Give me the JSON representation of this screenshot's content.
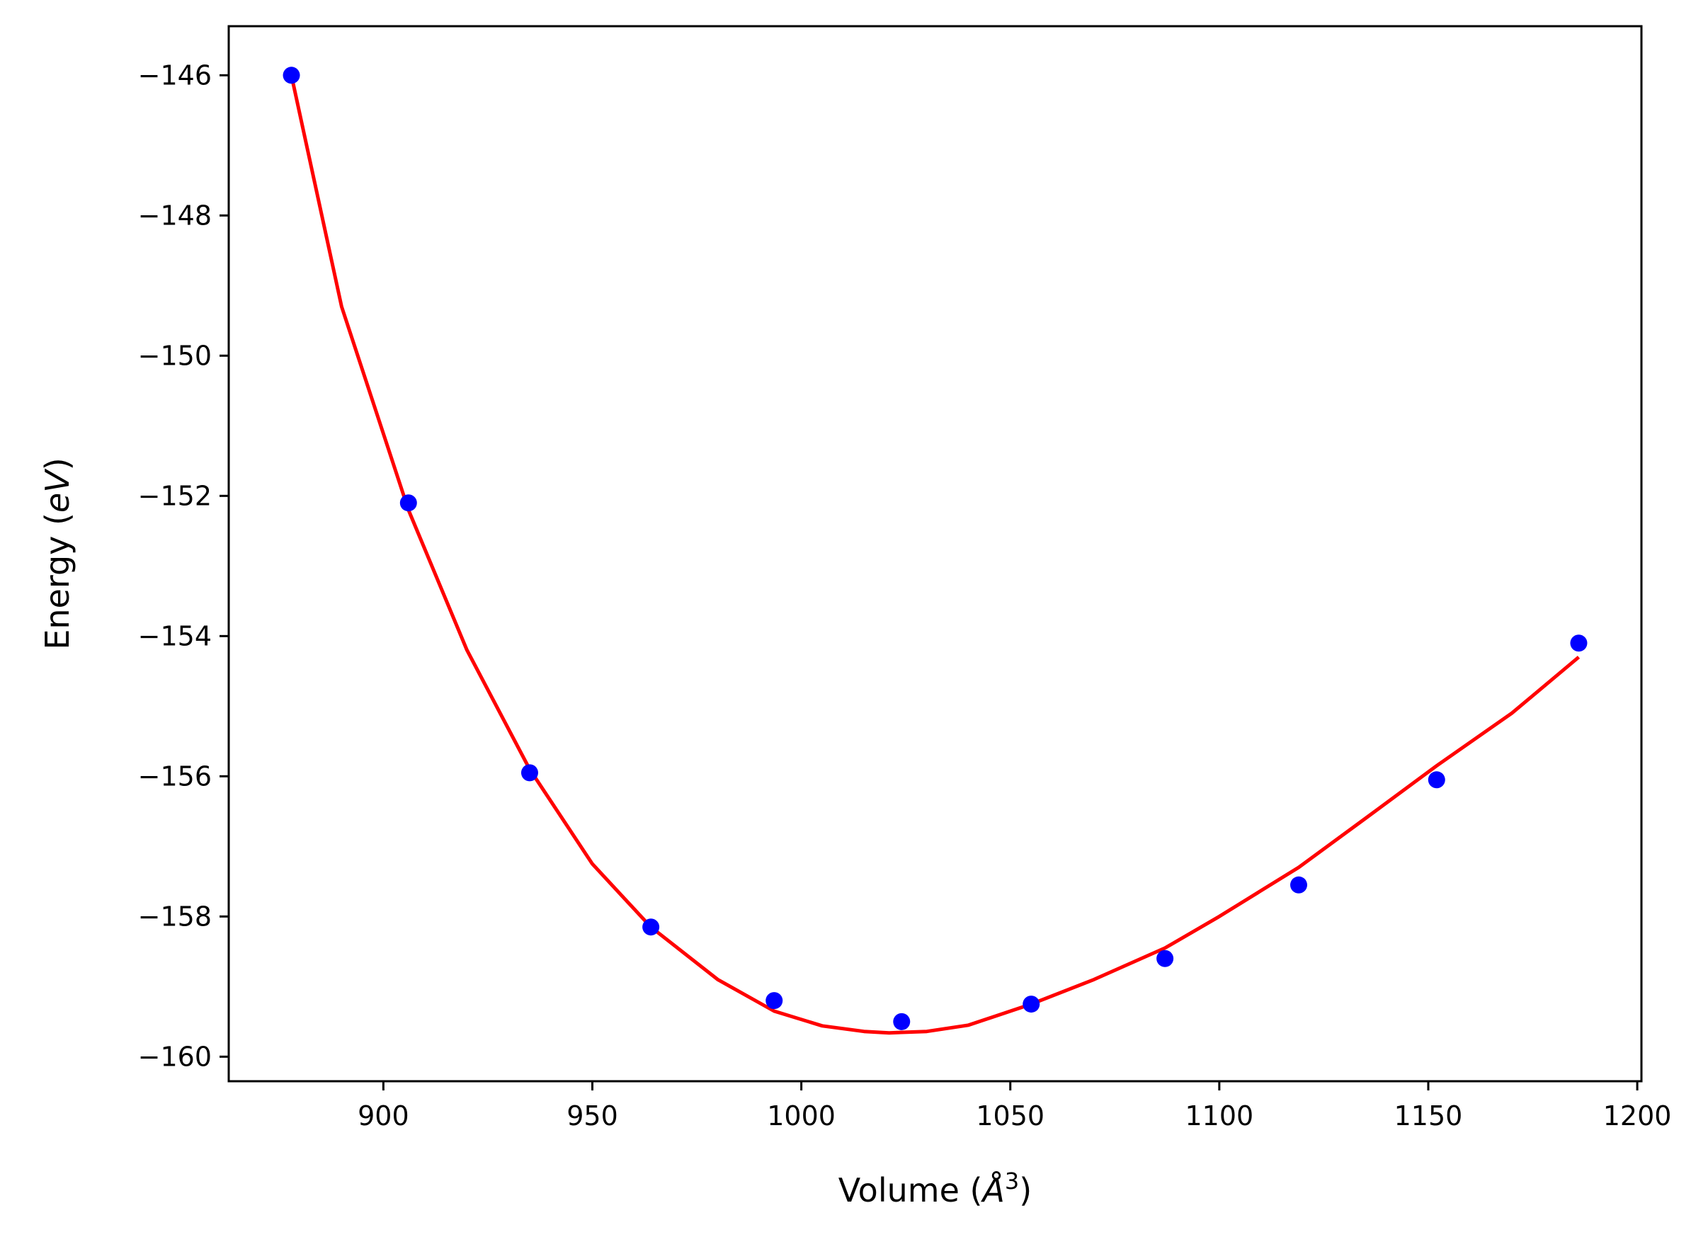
{
  "chart_data": {
    "type": "scatter",
    "xlabel": "Volume (Å³)",
    "xlabel_parts": {
      "text": "Volume (",
      "symbol": "Å",
      "superscript": "3",
      "close": ")"
    },
    "ylabel": "Energy (eV)",
    "ylabel_parts": {
      "text": "Energy (",
      "unit": "eV",
      "close": ")"
    },
    "xlim": [
      863,
      1201
    ],
    "ylim": [
      -160.35,
      -145.3
    ],
    "x_ticks": [
      900,
      950,
      1000,
      1050,
      1100,
      1150,
      1200
    ],
    "y_ticks": [
      -146,
      -148,
      -150,
      -152,
      -154,
      -156,
      -158,
      -160
    ],
    "x_tick_labels": [
      "900",
      "950",
      "1000",
      "1050",
      "1100",
      "1150",
      "1200"
    ],
    "y_tick_labels": [
      "−146",
      "−148",
      "−150",
      "−152",
      "−154",
      "−156",
      "−158",
      "−160"
    ],
    "grid": false,
    "series": [
      {
        "kind": "points",
        "color": "#0000ff",
        "x": [
          878,
          906,
          935,
          964,
          993.5,
          1024,
          1055,
          1087,
          1119,
          1152,
          1186
        ],
        "y": [
          -146.0,
          -152.1,
          -155.95,
          -158.15,
          -159.2,
          -159.5,
          -159.25,
          -158.6,
          -157.55,
          -156.05,
          -154.1
        ]
      },
      {
        "kind": "fit-curve",
        "color": "#ff0000",
        "x": [
          878,
          890,
          906,
          920,
          935,
          950,
          964,
          980,
          993.5,
          1005,
          1015,
          1021,
          1030,
          1040,
          1055,
          1070,
          1087,
          1100,
          1119,
          1135,
          1152,
          1170,
          1186
        ],
        "y": [
          -146.0,
          -149.3,
          -152.2,
          -154.2,
          -155.9,
          -157.25,
          -158.15,
          -158.9,
          -159.35,
          -159.56,
          -159.64,
          -159.66,
          -159.64,
          -159.55,
          -159.25,
          -158.9,
          -158.45,
          -158.0,
          -157.3,
          -156.6,
          -155.85,
          -155.1,
          -154.3
        ]
      }
    ]
  }
}
